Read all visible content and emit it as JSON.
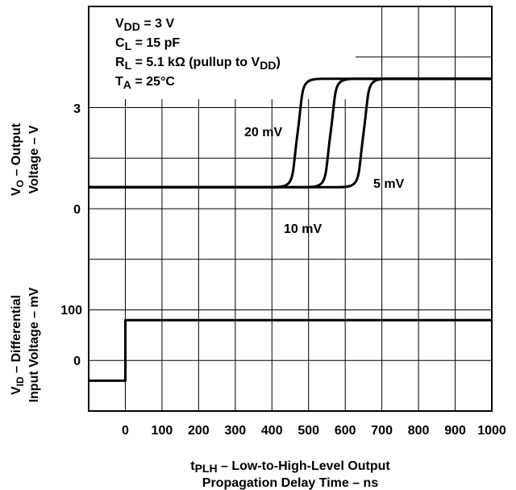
{
  "chart_data": {
    "type": "line",
    "x_ticks": [
      "0",
      "100",
      "200",
      "300",
      "400",
      "500",
      "600",
      "700",
      "800",
      "900",
      "1000"
    ],
    "xlim": [
      -100,
      1000
    ],
    "xlabel": {
      "prefix": "t",
      "sub": "PLH",
      "line1_rest": " – Low-to-High-Level Output",
      "line2": "Propagation Delay Time – ns"
    },
    "upper_panel": {
      "ylabel": {
        "line1_pre": "V",
        "line1_sub": "O",
        "line1_rest": " – Output",
        "line2": "Voltage – V"
      },
      "y_ticks": [
        "3",
        "0"
      ],
      "y_tick_values": [
        3,
        0
      ],
      "ylim": [
        -2,
        5
      ],
      "conditions": [
        {
          "pre": "V",
          "sub": "DD",
          "rest": " = 3 V"
        },
        {
          "pre": "C",
          "sub": "L",
          "rest": " = 15 pF"
        },
        {
          "pre": "R",
          "sub": "L",
          "rest": " = 5.1 kΩ (pullup to V",
          "sub2": "DD",
          "rest2": ")"
        },
        {
          "pre": "T",
          "sub": "A",
          "rest": " = 25°C"
        }
      ],
      "series": [
        {
          "name": "20 mV",
          "x": [
            -100,
            400,
            440,
            460,
            470,
            480,
            500,
            540,
            1000
          ],
          "y": [
            0,
            0,
            0.3,
            1,
            1.5,
            2,
            2.7,
            3,
            3
          ]
        },
        {
          "name": "10 mV",
          "x": [
            -100,
            490,
            530,
            550,
            560,
            570,
            590,
            630,
            1000
          ],
          "y": [
            0,
            0,
            0.3,
            1,
            1.5,
            2,
            2.7,
            3,
            3
          ]
        },
        {
          "name": "5 mV",
          "x": [
            -100,
            580,
            620,
            640,
            650,
            660,
            680,
            720,
            1000
          ],
          "y": [
            0,
            0,
            0.3,
            1,
            1.5,
            2,
            2.7,
            3,
            3
          ]
        }
      ]
    },
    "lower_panel": {
      "ylabel": {
        "line1_pre": "V",
        "line1_sub": "ID",
        "line1_rest": " – Differential",
        "line2": "Input Voltage – mV"
      },
      "y_ticks": [
        "100",
        "0"
      ],
      "y_tick_values": [
        100,
        0
      ],
      "ylim": [
        -50,
        200
      ],
      "series": [
        {
          "name": "",
          "x": [
            -100,
            0,
            0,
            1000
          ],
          "y": [
            0,
            0,
            100,
            100
          ]
        }
      ]
    },
    "grid": true
  }
}
